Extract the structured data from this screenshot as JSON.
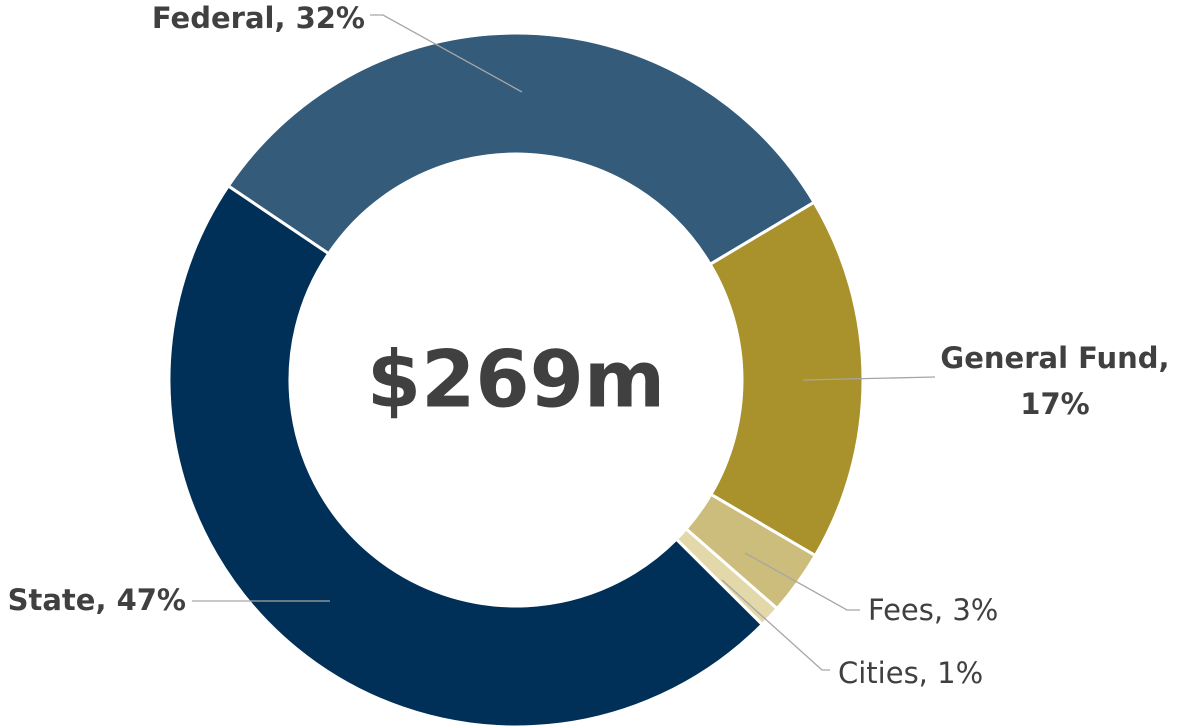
{
  "chart_data": {
    "type": "donut",
    "values": [
      32,
      17,
      3,
      1,
      47
    ],
    "value_labels": [
      "Federal, 32%",
      "General Fund, 17%",
      "Fees, 3%",
      "Cities, 1%",
      "State, 47%"
    ],
    "colors": [
      "#345b7a",
      "#a9922b",
      "#cdbd7d",
      "#e3d8a9",
      "#003057"
    ],
    "center_label": "$269m"
  }
}
